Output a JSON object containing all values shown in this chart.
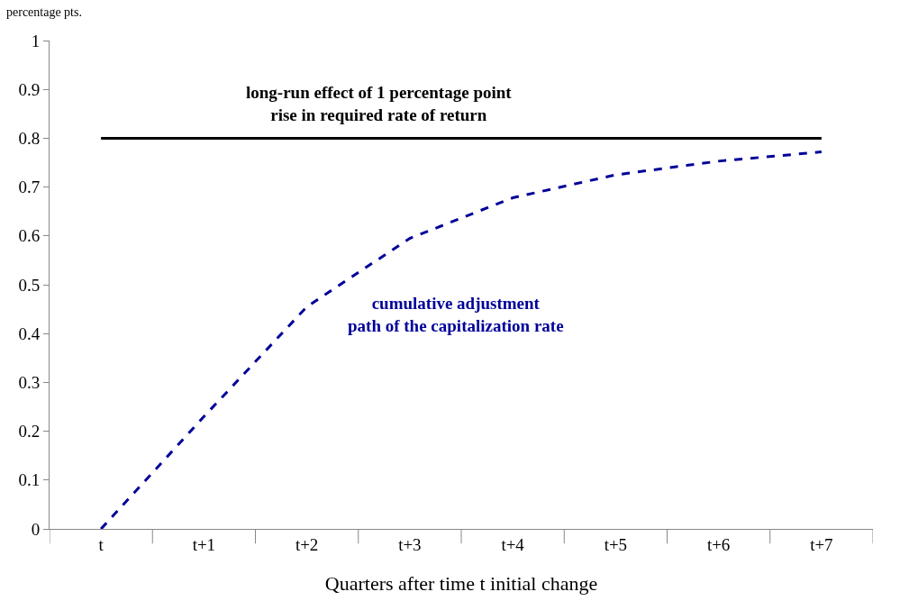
{
  "chart_data": {
    "type": "line",
    "ylabel": "percentage pts.",
    "xlabel": "Quarters after time t initial change",
    "categories": [
      "t",
      "t+1",
      "t+2",
      "t+3",
      "t+4",
      "t+5",
      "t+6",
      "t+7"
    ],
    "series": [
      {
        "color": "#000000",
        "line_style": "solid",
        "values": [
          0.8,
          0.8,
          0.8,
          0.8,
          0.8,
          0.8,
          0.8,
          0.8
        ]
      },
      {
        "color": "#000099",
        "line_style": "dashed",
        "values": [
          0,
          0.23,
          0.455,
          0.595,
          0.678,
          0.725,
          0.753,
          0.772
        ]
      }
    ],
    "annotations": [
      "long-run effect of 1 percentage point\nrise in required rate of return",
      "cumulative adjustment\npath of the capitalization rate"
    ],
    "ylim": [
      0,
      1
    ],
    "yticks": [
      0,
      0.1,
      0.2,
      0.3,
      0.4,
      0.5,
      0.6,
      0.7,
      0.8,
      0.9,
      1
    ],
    "marker": "none"
  }
}
